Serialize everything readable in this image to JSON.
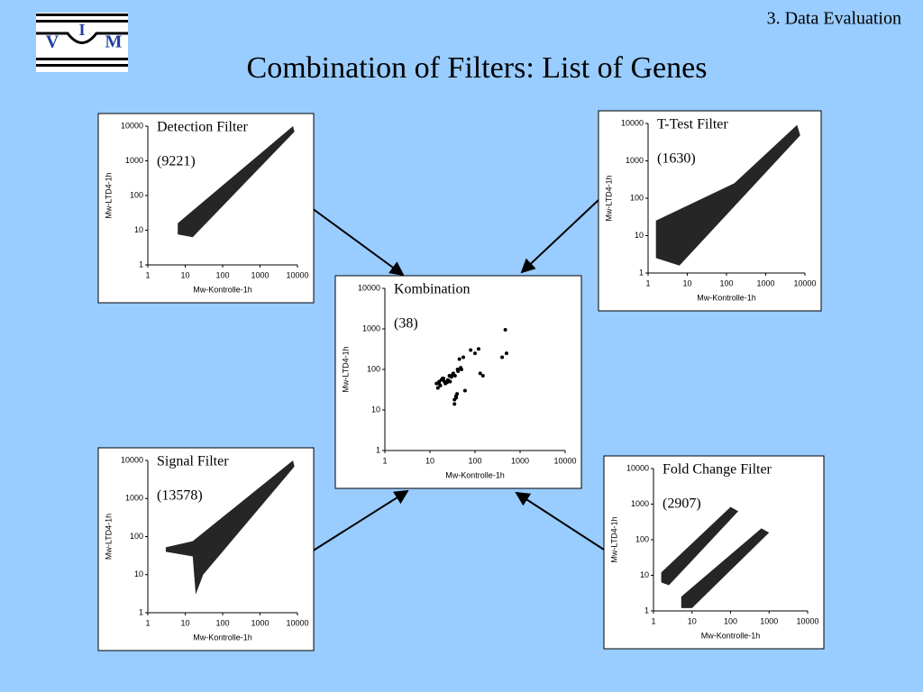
{
  "header": {
    "section": "3. Data Evaluation",
    "title": "Combination of Filters: List of Genes",
    "logo": [
      "V",
      "I",
      "M"
    ]
  },
  "chart_data": [
    {
      "type": "scatter",
      "title": "Detection Filter",
      "annotation": "(9221)",
      "x_label": "Mw-Kontrolle-1h",
      "y_label": "Mw-LTD4-1h",
      "log_scale": true,
      "xlim": [
        1,
        10000
      ],
      "ylim": [
        1,
        10000
      ],
      "xticks": [
        1,
        10,
        100,
        1000,
        10000
      ],
      "yticks": [
        1,
        10,
        100,
        1000,
        10000
      ],
      "color": "#000000"
    },
    {
      "type": "scatter",
      "title": "T-Test Filter",
      "annotation": "(1630)",
      "x_label": "Mw-Kontrolle-1h",
      "y_label": "Mw-LTD4-1h",
      "log_scale": true,
      "xlim": [
        1,
        10000
      ],
      "ylim": [
        1,
        10000
      ],
      "xticks": [
        1,
        10,
        100,
        1000,
        10000
      ],
      "yticks": [
        1,
        10,
        100,
        1000,
        10000
      ],
      "color": "#000000"
    },
    {
      "type": "scatter",
      "title": "Kombination",
      "annotation": "(38)",
      "x_label": "Mw-Kontrolle-1h",
      "y_label": "Mw-LTD4-1h",
      "log_scale": true,
      "xlim": [
        1,
        10000
      ],
      "ylim": [
        1,
        10000
      ],
      "xticks": [
        1,
        10,
        100,
        1000,
        10000
      ],
      "yticks": [
        1,
        10,
        100,
        1000,
        10000
      ],
      "color": "#000000",
      "x": [
        15,
        16,
        17,
        18,
        20,
        22,
        25,
        28,
        30,
        33,
        35,
        38,
        40,
        42,
        45,
        50,
        60,
        80,
        100,
        120,
        130,
        150,
        400,
        500,
        470,
        14,
        16,
        19,
        21,
        24,
        27,
        32,
        36,
        41,
        48,
        55,
        35,
        38
      ],
      "y": [
        35,
        50,
        40,
        55,
        60,
        45,
        55,
        50,
        65,
        80,
        14,
        20,
        25,
        90,
        180,
        100,
        30,
        300,
        250,
        320,
        80,
        70,
        200,
        250,
        950,
        45,
        45,
        60,
        50,
        48,
        70,
        75,
        70,
        100,
        110,
        200,
        18,
        22
      ]
    },
    {
      "type": "scatter",
      "title": "Signal Filter",
      "annotation": "(13578)",
      "x_label": "Mw-Kontrolle-1h",
      "y_label": "Mw-LTD4-1h",
      "log_scale": true,
      "xlim": [
        1,
        10000
      ],
      "ylim": [
        1,
        10000
      ],
      "xticks": [
        1,
        10,
        100,
        1000,
        10000
      ],
      "yticks": [
        1,
        10,
        100,
        1000,
        10000
      ],
      "color": "#000000"
    },
    {
      "type": "scatter",
      "title": "Fold Change Filter",
      "annotation": "(2907)",
      "x_label": "Mw-Kontrolle-1h",
      "y_label": "Mw-LTD4-1h",
      "log_scale": true,
      "xlim": [
        1,
        10000
      ],
      "ylim": [
        1,
        10000
      ],
      "xticks": [
        1,
        10,
        100,
        1000,
        10000
      ],
      "yticks": [
        1,
        10,
        100,
        1000,
        10000
      ],
      "color": "#000000"
    }
  ]
}
